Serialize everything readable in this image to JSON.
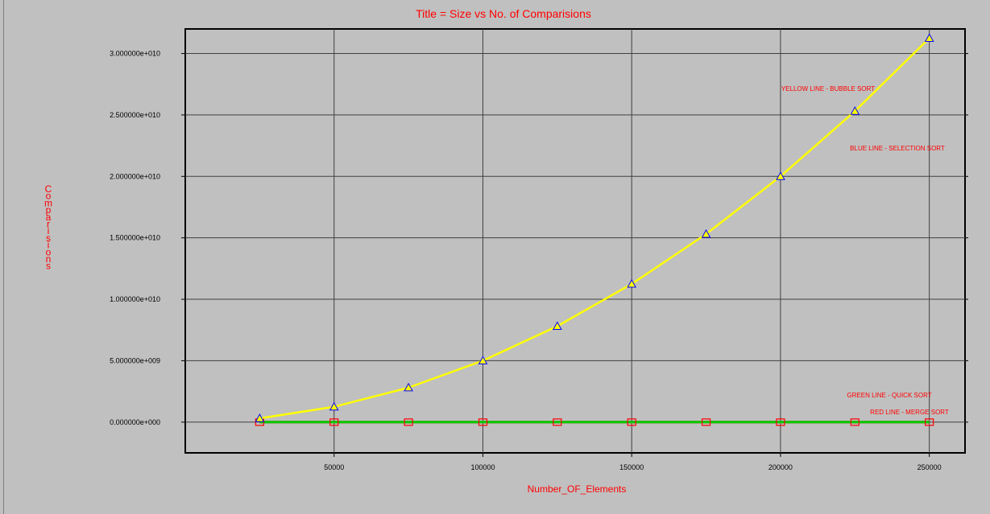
{
  "chart_data": {
    "type": "line",
    "title": "Title = Size vs No. of Comparisions",
    "xlabel": "Number_OF_Elements",
    "ylabel": "Comparisions",
    "xlim": [
      0,
      262000
    ],
    "ylim": [
      -2500000000,
      32000000000
    ],
    "x_ticks": [
      50000,
      100000,
      150000,
      200000,
      250000
    ],
    "x_tick_labels": [
      "50000",
      "100000",
      "150000",
      "200000",
      "250000"
    ],
    "y_ticks": [
      0,
      5000000000,
      10000000000,
      15000000000,
      20000000000,
      25000000000,
      30000000000
    ],
    "y_tick_labels": [
      "0.000000e+000",
      "5.000000e+009",
      "1.000000e+010",
      "1.500000e+010",
      "2.000000e+010",
      "2.500000e+010",
      "3.000000e+010"
    ],
    "grid": true,
    "x": [
      25000,
      50000,
      75000,
      100000,
      125000,
      150000,
      175000,
      200000,
      225000,
      250000
    ],
    "series": [
      {
        "name": "BUBBLE SORT",
        "color": "#ffff00",
        "marker": "triangle",
        "values": [
          310000000,
          1250000000,
          2810000000,
          5000000000,
          7810000000,
          11250000000,
          15310000000,
          20000000000,
          25310000000,
          31250000000
        ]
      },
      {
        "name": "SELECTION SORT",
        "color": "#0000ff",
        "marker": "triangle",
        "values": [
          310000000,
          1250000000,
          2810000000,
          5000000000,
          7810000000,
          11250000000,
          15310000000,
          20000000000,
          25310000000,
          31250000000
        ]
      },
      {
        "name": "MERGE SORT",
        "color": "#ff0000",
        "marker": "square",
        "values": [
          0,
          0,
          0,
          0,
          0,
          0,
          0,
          0,
          0,
          0
        ]
      },
      {
        "name": "QUICK SORT",
        "color": "#00cc00",
        "marker": "none",
        "values": [
          0,
          0,
          0,
          0,
          0,
          0,
          0,
          0,
          0,
          0
        ]
      }
    ],
    "legend": [
      "YELLOW LINE - BUBBLE SORT",
      "BLUE LINE - SELECTION SORT",
      "GREEN LINE - QUICK SORT",
      "RED LINE - MERGE SORT"
    ]
  }
}
